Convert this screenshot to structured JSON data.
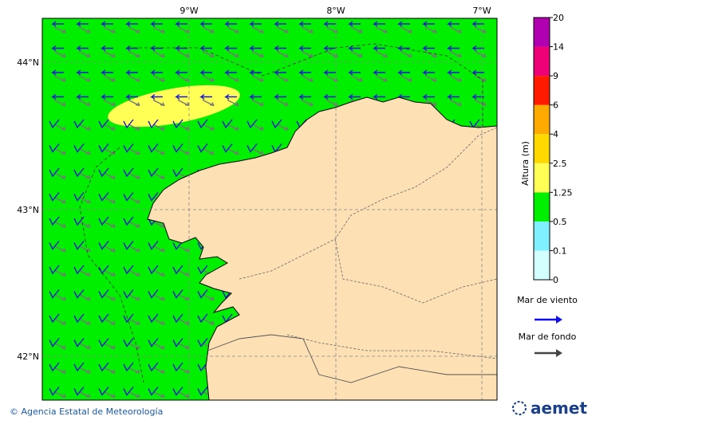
{
  "map": {
    "lon_labels": [
      "9°W",
      "8°W",
      "7°W"
    ],
    "lat_labels": [
      "44°N",
      "43°N",
      "42°N"
    ]
  },
  "colorbar": {
    "title": "Altura (m)",
    "levels": [
      "0",
      "0.1",
      "0.5",
      "1.25",
      "2.5",
      "4",
      "6",
      "9",
      "14",
      "20"
    ],
    "colors": [
      "#d4ffff",
      "#7ff0ff",
      "#00ee00",
      "#ffff55",
      "#ffd800",
      "#ffaa00",
      "#ff1a00",
      "#ee0077",
      "#b000b0"
    ]
  },
  "legend": {
    "wind_sea": "Mar de viento",
    "swell": "Mar de fondo"
  },
  "footer": {
    "credit": "© Agencia Estatal de Meteorología",
    "logo": "aemet"
  }
}
